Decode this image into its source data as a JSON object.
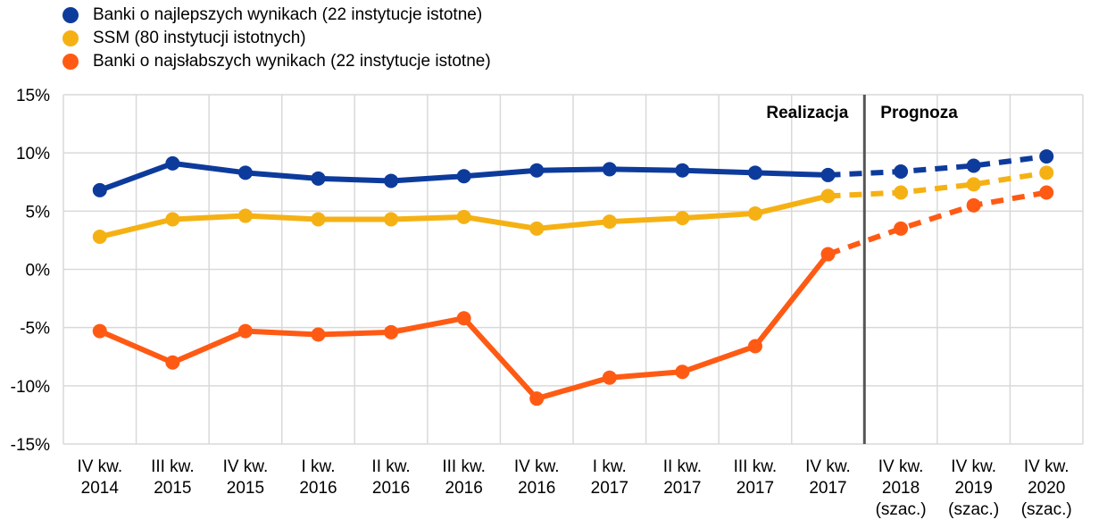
{
  "chart_data": {
    "type": "line",
    "categories": [
      [
        "IV kw.",
        "2014"
      ],
      [
        "III kw.",
        "2015"
      ],
      [
        "IV kw.",
        "2015"
      ],
      [
        "I kw.",
        "2016"
      ],
      [
        "II kw.",
        "2016"
      ],
      [
        "III kw.",
        "2016"
      ],
      [
        "IV kw.",
        "2016"
      ],
      [
        "I kw.",
        "2017"
      ],
      [
        "II kw.",
        "2017"
      ],
      [
        "III kw.",
        "2017"
      ],
      [
        "IV kw.",
        "2017"
      ],
      [
        "IV kw.",
        "2018",
        "(szac.)"
      ],
      [
        "IV kw.",
        "2019",
        "(szac.)"
      ],
      [
        "IV kw.",
        "2020",
        "(szac.)"
      ]
    ],
    "y_ticks": [
      "15%",
      "10%",
      "5%",
      "0%",
      "-5%",
      "-10%",
      "-15%"
    ],
    "ylim": [
      -15,
      15
    ],
    "y_unit": "%",
    "grid": true,
    "legend_position": "top-left",
    "annotations": {
      "actual": "Realizacja",
      "forecast": "Prognoza"
    },
    "forecast_start_index": 10,
    "series": [
      {
        "name": "Banki o najlepszych wynikach (22 instytucje istotne)",
        "color": "#0d3b9c",
        "values": [
          6.8,
          9.1,
          8.3,
          7.8,
          7.6,
          8.0,
          8.5,
          8.6,
          8.5,
          8.3,
          8.1,
          8.4,
          8.9,
          9.7
        ]
      },
      {
        "name": "SSM (80 instytucji istotnych)",
        "color": "#f5b114",
        "values": [
          2.8,
          4.3,
          4.6,
          4.3,
          4.3,
          4.5,
          3.5,
          4.1,
          4.4,
          4.8,
          6.3,
          6.6,
          7.3,
          8.3
        ]
      },
      {
        "name": "Banki o najsłabszych wynikach (22 instytucje istotne)",
        "color": "#ff5a14",
        "values": [
          -5.3,
          -8.0,
          -5.3,
          -5.6,
          -5.4,
          -4.2,
          -11.1,
          -9.3,
          -8.8,
          -6.6,
          1.3,
          3.5,
          5.5,
          6.6
        ]
      }
    ]
  }
}
